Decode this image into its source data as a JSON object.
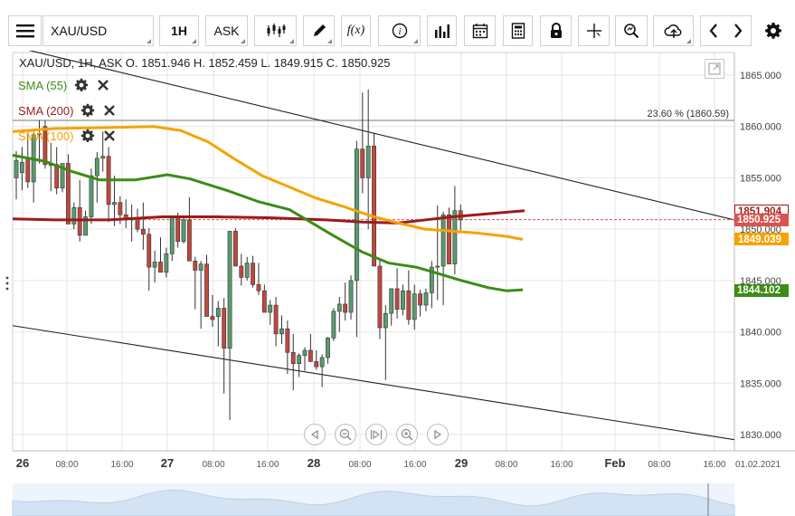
{
  "toolbar": {
    "symbol": "XAU/USD",
    "timeframe": "1H",
    "price_type": "ASK",
    "function_label": "f(x)"
  },
  "chart": {
    "ohlc_text": "XAU/USD, 1H, ASK   O. 1851.946 H. 1852.459 L. 1849.915 C. 1850.925",
    "indicators": [
      {
        "name": "SMA (55)",
        "color": "#3c8c16"
      },
      {
        "name": "SMA (200)",
        "color": "#9b1b1b"
      },
      {
        "name": "SMA (100)",
        "color": "#f5a300"
      }
    ],
    "fib_label": "23.60 % (1860.59)",
    "price_ticks": [
      "1865.000",
      "1860.000",
      "1855.000",
      "1850.000",
      "1845.000",
      "1840.000",
      "1835.000",
      "1830.000"
    ],
    "price_tags": [
      {
        "label": "1851.904",
        "color": "#9b1b1b"
      },
      {
        "label": "1850.925",
        "color": "#d9534f"
      },
      {
        "label": "1849.039",
        "color": "#f5a300"
      },
      {
        "label": "1844.102",
        "color": "#3c8c16"
      }
    ],
    "time_labels": [
      {
        "label": "26",
        "bold": true
      },
      {
        "label": "08:00",
        "bold": false
      },
      {
        "label": "16:00",
        "bold": false
      },
      {
        "label": "27",
        "bold": true
      },
      {
        "label": "08:00",
        "bold": false
      },
      {
        "label": "16:00",
        "bold": false
      },
      {
        "label": "28",
        "bold": true
      },
      {
        "label": "08:00",
        "bold": false
      },
      {
        "label": "16:00",
        "bold": false
      },
      {
        "label": "29",
        "bold": true
      },
      {
        "label": "08:00",
        "bold": false
      },
      {
        "label": "16:00",
        "bold": false
      },
      {
        "label": "Feb",
        "bold": true
      },
      {
        "label": "08:00",
        "bold": false
      },
      {
        "label": "16:00",
        "bold": false
      }
    ],
    "date_readout": "01.02.2021",
    "colors": {
      "up": "#5a9a6e",
      "down": "#c0483e",
      "grid": "#e6e6e6"
    }
  }
}
